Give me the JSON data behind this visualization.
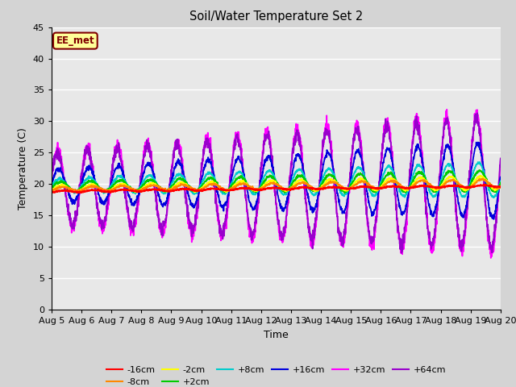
{
  "title": "Soil/Water Temperature Set 2",
  "xlabel": "Time",
  "ylabel": "Temperature (C)",
  "ylim": [
    0,
    45
  ],
  "xlim": [
    0,
    15
  ],
  "yticks": [
    0,
    5,
    10,
    15,
    20,
    25,
    30,
    35,
    40,
    45
  ],
  "xtick_labels": [
    "Aug 5",
    "Aug 6",
    "Aug 7",
    "Aug 8",
    "Aug 9",
    "Aug 10",
    "Aug 11",
    "Aug 12",
    "Aug 13",
    "Aug 14",
    "Aug 15",
    "Aug 16",
    "Aug 17",
    "Aug 18",
    "Aug 19",
    "Aug 20"
  ],
  "annotation_text": "EE_met",
  "annotation_bg": "#ffff99",
  "annotation_border": "#800000",
  "fig_bg": "#d4d4d4",
  "plot_bg": "#e8e8e8",
  "grid_color": "#ffffff",
  "series_colors": {
    "-16cm": "#ff0000",
    "-8cm": "#ff8800",
    "-2cm": "#ffff00",
    "+2cm": "#00cc00",
    "+8cm": "#00cccc",
    "+16cm": "#0000dd",
    "+32cm": "#ff00ff",
    "+64cm": "#9900cc"
  }
}
